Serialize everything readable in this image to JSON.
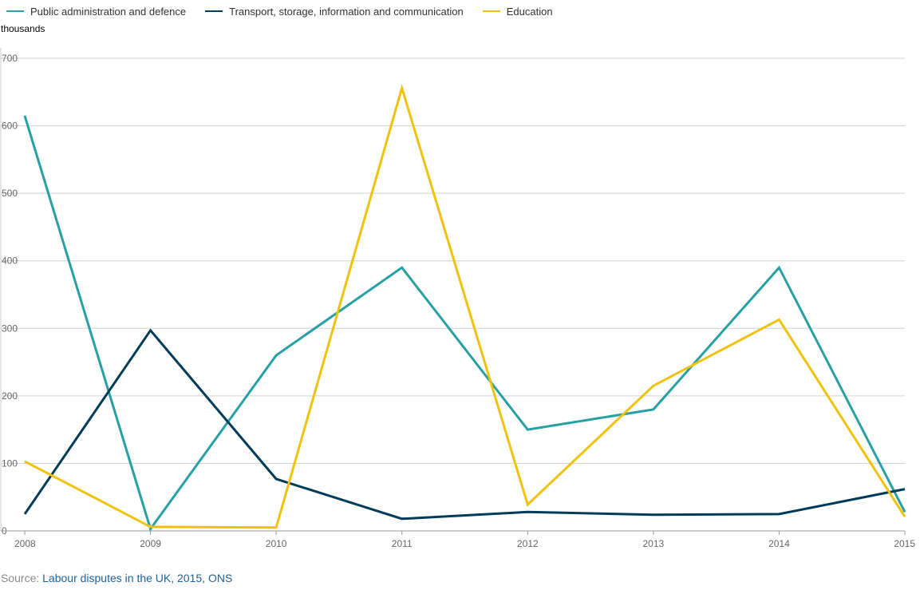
{
  "legend": [
    {
      "name": "Public administration and defence",
      "color": "#27a0a4"
    },
    {
      "name": "Transport, storage, information and communication",
      "color": "#003c57"
    },
    {
      "name": "Education",
      "color": "#f0c20c"
    }
  ],
  "source": {
    "prefix": "Source: ",
    "link_text": "Labour disputes in the UK, 2015, ONS"
  },
  "chart_data": {
    "type": "line",
    "ylabel": "thousands",
    "x": [
      "2008",
      "2009",
      "2010",
      "2011",
      "2012",
      "2013",
      "2014",
      "2015"
    ],
    "ylim": [
      0,
      700
    ],
    "yticks": [
      "0",
      "100",
      "200",
      "300",
      "400",
      "500",
      "600",
      "700"
    ],
    "grid": true,
    "legend_position": "top-left",
    "series": [
      {
        "name": "Public administration and defence",
        "color": "#27a0a4",
        "values": [
          615,
          3,
          260,
          390,
          150,
          180,
          390,
          28
        ]
      },
      {
        "name": "Transport, storage, information and communication",
        "color": "#003c57",
        "values": [
          25,
          297,
          77,
          18,
          28,
          24,
          25,
          62
        ]
      },
      {
        "name": "Education",
        "color": "#f0c20c",
        "values": [
          103,
          6,
          5,
          656,
          39,
          215,
          313,
          21
        ]
      }
    ]
  }
}
